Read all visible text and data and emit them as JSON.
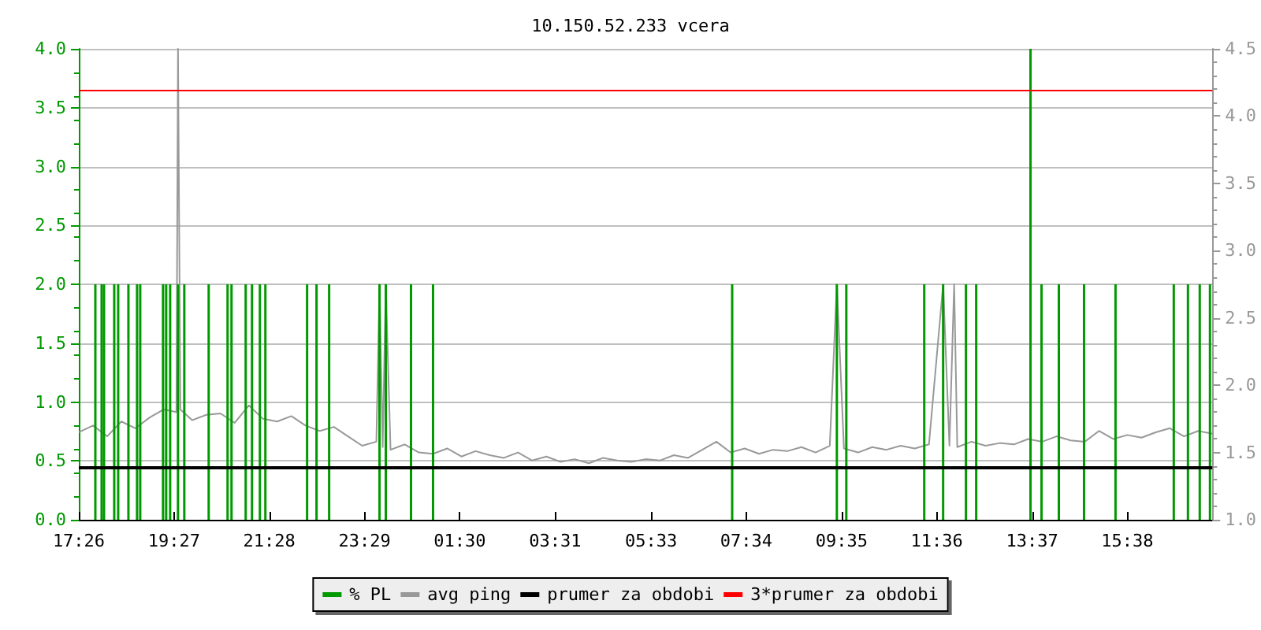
{
  "chart_data": {
    "type": "line",
    "title": "10.150.52.233 vcera",
    "xlim": [
      "--01-01T17:26",
      "--01-02T17:26"
    ],
    "xticks": [
      {
        "value": "--01-01T17:26",
        "label": "17:26"
      },
      {
        "value": "--01-01T19:27",
        "label": "19:27"
      },
      {
        "value": "--01-01T21:28",
        "label": "21:28"
      },
      {
        "value": "--01-01T23:29",
        "label": "23:29"
      },
      {
        "value": "--01-02T01:30",
        "label": "01:30"
      },
      {
        "value": "--01-02T03:31",
        "label": "03:31"
      },
      {
        "value": "--01-02T05:33",
        "label": "05:33"
      },
      {
        "value": "--01-02T07:34",
        "label": "07:34"
      },
      {
        "value": "--01-02T09:35",
        "label": "09:35"
      },
      {
        "value": "--01-02T11:36",
        "label": "11:36"
      },
      {
        "value": "--01-02T13:37",
        "label": "13:37"
      },
      {
        "value": "--01-02T15:38",
        "label": "15:38"
      }
    ],
    "ylim": [
      0,
      4
    ],
    "yticks": [
      {
        "value": 0,
        "label": "0.0"
      },
      0.5,
      {
        "value": 1,
        "label": "1.0"
      },
      1.5,
      {
        "value": 2,
        "label": "2.0"
      },
      2.5,
      {
        "value": 3,
        "label": "3.0"
      },
      3.5,
      {
        "value": 4,
        "label": "4.0"
      }
    ],
    "y2lim": [
      1,
      4.5
    ],
    "y2ticks": [
      {
        "value": 1,
        "label": "1.0"
      },
      1.5,
      {
        "value": 2,
        "label": "2.0"
      },
      2.5,
      {
        "value": 3,
        "label": "3.0"
      },
      3.5,
      {
        "value": 4,
        "label": "4.0"
      },
      4.5
    ],
    "grid": "y",
    "legend": "bottom",
    "marker": "none",
    "line_style": "solid",
    "series": [
      {
        "name": "% PL",
        "type": "bar",
        "color": "#009900",
        "x": [
          "--01-01T17:47",
          "--01-01T17:55",
          "--01-01T17:58",
          "--01-01T18:11",
          "--01-01T18:16",
          "--01-01T18:29",
          "--01-01T18:40",
          "--01-01T18:44",
          "--01-01T19:13",
          "--01-01T19:17",
          "--01-01T19:22",
          "--01-01T19:32",
          "--01-01T19:40",
          "--01-01T20:11",
          "--01-01T20:35",
          "--01-01T20:40",
          "--01-01T20:58",
          "--01-01T21:06",
          "--01-01T21:16",
          "--01-01T21:23",
          "--01-01T22:16",
          "--01-01T22:28",
          "--01-01T22:44",
          "--01-01T23:48",
          "--01-01T23:56",
          "--01-02T00:28",
          "--01-02T00:56",
          "--01-02T07:16",
          "--01-02T09:29",
          "--01-02T09:41",
          "--01-02T11:20",
          "--01-02T11:44",
          "--01-02T12:13",
          "--01-02T12:26",
          "--01-02T13:35",
          "--01-02T13:49",
          "--01-02T14:11",
          "--01-02T14:43",
          "--01-02T15:23",
          "--01-02T16:37",
          "--01-02T16:55",
          "--01-02T17:10",
          "--01-02T17:23"
        ],
        "values": [
          2,
          2,
          2,
          2,
          2,
          2,
          2,
          2,
          2,
          2,
          2,
          2,
          2,
          2,
          2,
          2,
          2,
          2,
          2,
          2,
          2,
          2,
          2,
          2,
          2,
          2,
          2,
          2,
          2,
          2,
          2,
          2,
          2,
          2,
          4,
          2,
          2,
          2,
          2,
          2,
          2,
          2,
          2
        ]
      },
      {
        "name": "avg ping",
        "axis": "y2",
        "color": "#999999",
        "x": [
          "--01-01T17:26",
          "--01-01T17:44",
          "--01-01T18:02",
          "--01-01T18:20",
          "--01-01T18:38",
          "--01-01T18:56",
          "--01-01T19:14",
          "--01-01T19:30",
          "--01-01T19:32",
          "--01-01T19:35",
          "--01-01T19:50",
          "--01-01T20:08",
          "--01-01T20:26",
          "--01-01T20:44",
          "--01-01T21:02",
          "--01-01T21:20",
          "--01-01T21:38",
          "--01-01T21:56",
          "--01-01T22:14",
          "--01-01T22:32",
          "--01-01T22:50",
          "--01-01T23:08",
          "--01-01T23:26",
          "--01-01T23:44",
          "--01-01T23:48",
          "--01-01T23:52",
          "--01-01T23:56",
          "--01-02T00:02",
          "--01-02T00:20",
          "--01-02T00:38",
          "--01-02T00:56",
          "--01-02T01:14",
          "--01-02T01:32",
          "--01-02T01:50",
          "--01-02T02:08",
          "--01-02T02:26",
          "--01-02T02:44",
          "--01-02T03:02",
          "--01-02T03:20",
          "--01-02T03:38",
          "--01-02T03:56",
          "--01-02T04:14",
          "--01-02T04:32",
          "--01-02T04:50",
          "--01-02T05:08",
          "--01-02T05:26",
          "--01-02T05:44",
          "--01-02T06:02",
          "--01-02T06:20",
          "--01-02T06:38",
          "--01-02T06:56",
          "--01-02T07:14",
          "--01-02T07:32",
          "--01-02T07:50",
          "--01-02T08:08",
          "--01-02T08:26",
          "--01-02T08:44",
          "--01-02T09:02",
          "--01-02T09:20",
          "--01-02T09:29",
          "--01-02T09:38",
          "--01-02T09:56",
          "--01-02T10:14",
          "--01-02T10:32",
          "--01-02T10:50",
          "--01-02T11:08",
          "--01-02T11:26",
          "--01-02T11:44",
          "--01-02T11:52",
          "--01-02T11:58",
          "--01-02T12:02",
          "--01-02T12:20",
          "--01-02T12:38",
          "--01-02T12:56",
          "--01-02T13:14",
          "--01-02T13:32",
          "--01-02T13:50",
          "--01-02T14:08",
          "--01-02T14:26",
          "--01-02T14:44",
          "--01-02T15:02",
          "--01-02T15:20",
          "--01-02T15:38",
          "--01-02T15:56",
          "--01-02T16:14",
          "--01-02T16:32",
          "--01-02T16:50",
          "--01-02T17:08",
          "--01-02T17:26"
        ],
        "values": [
          1.65,
          1.7,
          1.62,
          1.73,
          1.68,
          1.76,
          1.82,
          1.8,
          4.5,
          1.82,
          1.74,
          1.78,
          1.79,
          1.72,
          1.85,
          1.75,
          1.73,
          1.77,
          1.7,
          1.66,
          1.69,
          1.62,
          1.55,
          1.58,
          2.75,
          1.54,
          2.75,
          1.52,
          1.56,
          1.5,
          1.49,
          1.53,
          1.47,
          1.51,
          1.48,
          1.46,
          1.5,
          1.44,
          1.47,
          1.43,
          1.45,
          1.42,
          1.46,
          1.44,
          1.43,
          1.45,
          1.44,
          1.48,
          1.46,
          1.52,
          1.58,
          1.5,
          1.53,
          1.49,
          1.52,
          1.51,
          1.54,
          1.5,
          1.55,
          2.75,
          1.53,
          1.5,
          1.54,
          1.52,
          1.55,
          1.53,
          1.56,
          2.75,
          1.55,
          2.75,
          1.54,
          1.58,
          1.55,
          1.57,
          1.56,
          1.6,
          1.58,
          1.62,
          1.59,
          1.58,
          1.66,
          1.6,
          1.63,
          1.61,
          1.65,
          1.68,
          1.62,
          1.66,
          1.64
        ]
      }
    ],
    "ref_lines": [
      {
        "axis": "y",
        "value": 0.45,
        "label": "prumer za obdobi",
        "color": "#000000",
        "line_style": "solid"
      },
      {
        "axis": "y",
        "value": 3.65,
        "label": "3*prumer za obdobi",
        "color": "#ff0000",
        "line_style": "solid"
      }
    ]
  }
}
